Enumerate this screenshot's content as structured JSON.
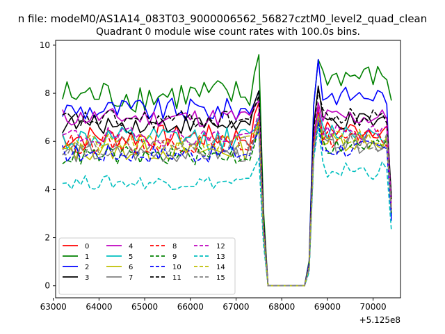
{
  "chart_data": {
    "type": "line",
    "suptitle": "n file: modeM0/AS1A14_083T03_9000006562_56827cztM0_level2_quad_clean",
    "title": "Quadrant 0 module wise count rates with 100.0s bins.",
    "xlabel": "",
    "ylabel": "",
    "x_offset_label": "+5.125e8",
    "xlim": [
      63050,
      70600
    ],
    "ylim": [
      -0.5,
      10.2
    ],
    "xticks": [
      63000,
      64000,
      65000,
      66000,
      67000,
      68000,
      69000,
      70000
    ],
    "xtick_labels": [
      "63000",
      "64000",
      "65000",
      "66000",
      "67000",
      "68000",
      "69000",
      "70000"
    ],
    "yticks": [
      0,
      2,
      4,
      6,
      8,
      10
    ],
    "ytick_labels": [
      "0",
      "2",
      "4",
      "6",
      "8",
      "10"
    ],
    "legend_position": "lower-left",
    "grid": false,
    "x_range": {
      "start": 63200,
      "step": 100,
      "count": 73
    },
    "gap_interval": [
      67800,
      68600
    ],
    "series": [
      {
        "name": "0",
        "color": "#ff0000",
        "style": "solid",
        "pre_level": 6.2,
        "pre_variation": 0.5,
        "post_level": 6.5,
        "post_variation": 0.4,
        "peak1": 7.6,
        "peak2": 7.4,
        "end_value": 3.6
      },
      {
        "name": "1",
        "color": "#008000",
        "style": "solid",
        "pre_level": 7.9,
        "pre_variation": 0.7,
        "post_level": 8.7,
        "post_variation": 0.5,
        "peak1": 9.6,
        "peak2": 9.4,
        "end_value": 7.7
      },
      {
        "name": "2",
        "color": "#0000ff",
        "style": "solid",
        "pre_level": 7.3,
        "pre_variation": 0.5,
        "post_level": 7.9,
        "post_variation": 0.4,
        "peak1": 8.1,
        "peak2": 9.4,
        "end_value": 2.7
      },
      {
        "name": "3",
        "color": "#000000",
        "style": "solid",
        "pre_level": 6.7,
        "pre_variation": 0.4,
        "post_level": 6.8,
        "post_variation": 0.4,
        "peak1": 8.1,
        "peak2": 8.3,
        "end_value": 3.7
      },
      {
        "name": "4",
        "color": "#bf00bf",
        "style": "solid",
        "pre_level": 7.0,
        "pre_variation": 0.4,
        "post_level": 7.0,
        "post_variation": 0.4,
        "peak1": 7.7,
        "peak2": 7.6,
        "end_value": 3.3
      },
      {
        "name": "5",
        "color": "#00bfbf",
        "style": "solid",
        "pre_level": 6.1,
        "pre_variation": 0.5,
        "post_level": 6.4,
        "post_variation": 0.4,
        "peak1": 7.0,
        "peak2": 7.3,
        "end_value": 3.1
      },
      {
        "name": "6",
        "color": "#bfbf00",
        "style": "solid",
        "pre_level": 5.6,
        "pre_variation": 0.4,
        "post_level": 6.0,
        "post_variation": 0.4,
        "peak1": 6.8,
        "peak2": 7.1,
        "end_value": 3.1
      },
      {
        "name": "7",
        "color": "#808080",
        "style": "solid",
        "pre_level": 5.5,
        "pre_variation": 0.4,
        "post_level": 5.9,
        "post_variation": 0.4,
        "peak1": 6.5,
        "peak2": 7.0,
        "end_value": 3.0
      },
      {
        "name": "8",
        "color": "#ff0000",
        "style": "dashed",
        "pre_level": 5.9,
        "pre_variation": 0.4,
        "post_level": 6.1,
        "post_variation": 0.4,
        "peak1": 6.9,
        "peak2": 7.3,
        "end_value": 3.2
      },
      {
        "name": "9",
        "color": "#008000",
        "style": "dashed",
        "pre_level": 5.4,
        "pre_variation": 0.4,
        "post_level": 5.8,
        "post_variation": 0.4,
        "peak1": 6.6,
        "peak2": 6.9,
        "end_value": 3.0
      },
      {
        "name": "10",
        "color": "#0000ff",
        "style": "dashed",
        "pre_level": 5.5,
        "pre_variation": 0.4,
        "post_level": 5.7,
        "post_variation": 0.4,
        "peak1": 6.4,
        "peak2": 6.8,
        "end_value": 2.9
      },
      {
        "name": "11",
        "color": "#000000",
        "style": "dashed",
        "pre_level": 6.9,
        "pre_variation": 0.4,
        "post_level": 7.0,
        "post_variation": 0.4,
        "peak1": 7.9,
        "peak2": 8.1,
        "end_value": 3.6
      },
      {
        "name": "12",
        "color": "#bf00bf",
        "style": "dashed",
        "pre_level": 6.2,
        "pre_variation": 0.4,
        "post_level": 6.3,
        "post_variation": 0.4,
        "peak1": 7.2,
        "peak2": 7.4,
        "end_value": 3.3
      },
      {
        "name": "13",
        "color": "#00bfbf",
        "style": "dashed",
        "pre_level": 4.3,
        "pre_variation": 0.3,
        "post_level": 4.8,
        "post_variation": 0.4,
        "peak1": 5.3,
        "peak2": 6.6,
        "end_value": 2.3
      },
      {
        "name": "14",
        "color": "#bfbf00",
        "style": "dashed",
        "pre_level": 5.9,
        "pre_variation": 0.4,
        "post_level": 6.2,
        "post_variation": 0.4,
        "peak1": 6.8,
        "peak2": 7.1,
        "end_value": 3.2
      },
      {
        "name": "15",
        "color": "#808080",
        "style": "dashed",
        "pre_level": 5.8,
        "pre_variation": 0.4,
        "post_level": 6.0,
        "post_variation": 0.4,
        "peak1": 6.7,
        "peak2": 7.0,
        "end_value": 3.1
      }
    ]
  }
}
